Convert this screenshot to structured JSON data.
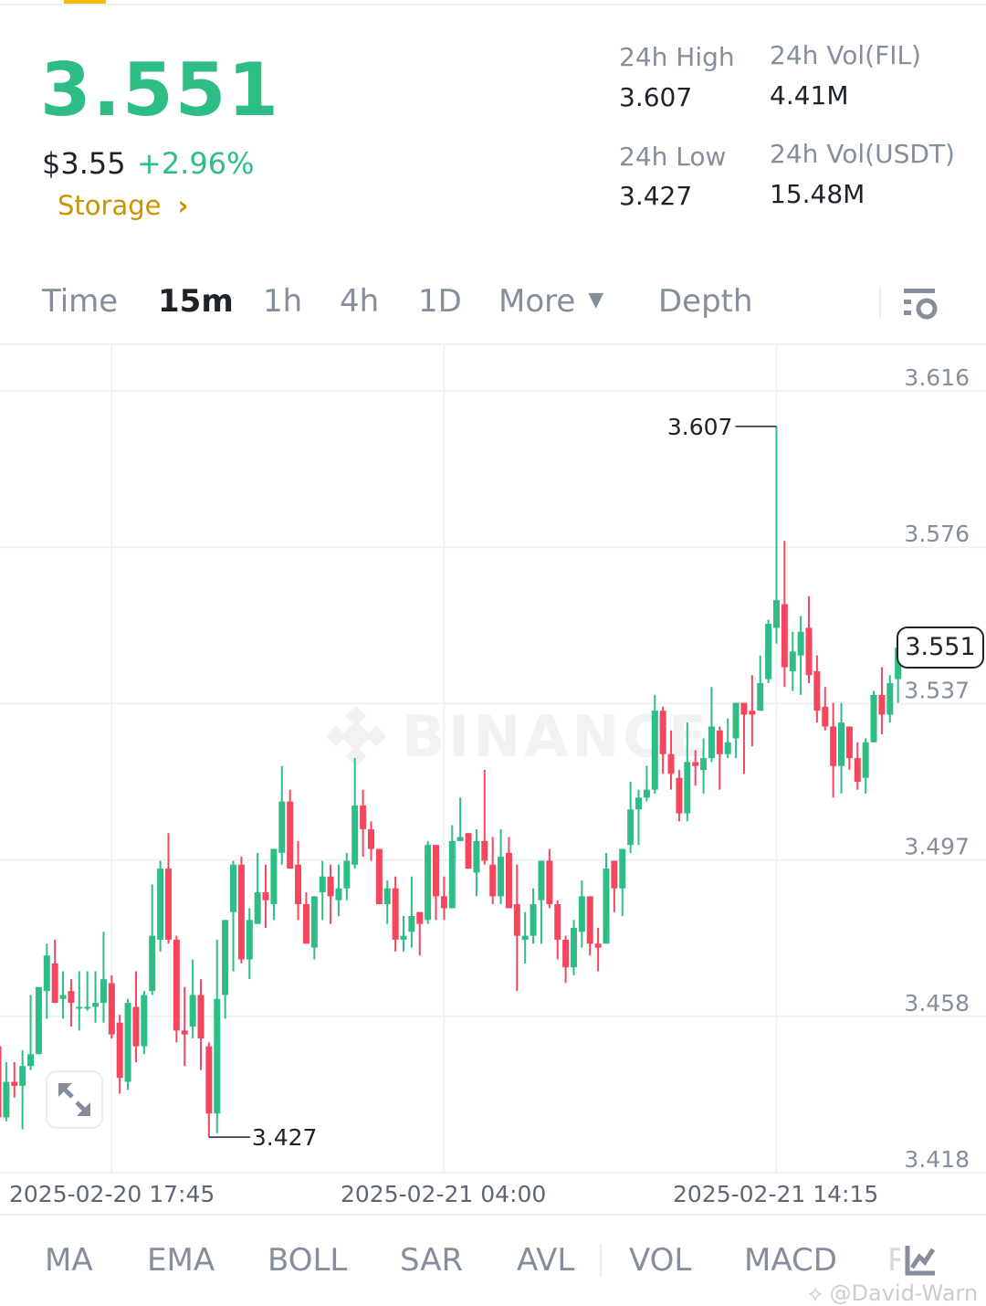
{
  "ticker": {
    "last_price": "3.551",
    "usd_price": "$3.55",
    "change_pct": "+2.96%",
    "category": "Storage",
    "stats": {
      "high_label": "24h High",
      "high_value": "3.607",
      "low_label": "24h Low",
      "low_value": "3.427",
      "vol_base_label": "24h Vol(FIL)",
      "vol_base_value": "4.41M",
      "vol_quote_label": "24h Vol(USDT)",
      "vol_quote_value": "15.48M"
    }
  },
  "tabs": [
    {
      "label": "Time",
      "active": false
    },
    {
      "label": "15m",
      "active": true
    },
    {
      "label": "1h",
      "active": false
    },
    {
      "label": "4h",
      "active": false
    },
    {
      "label": "1D",
      "active": false
    },
    {
      "label": "More",
      "active": false
    },
    {
      "label": "Depth",
      "active": false
    }
  ],
  "indicators": [
    "MA",
    "EMA",
    "BOLL",
    "SAR",
    "AVL",
    "VOL",
    "MACD",
    "R"
  ],
  "watermark": "@David-Warn",
  "logo_watermark": "BINANCE",
  "colors": {
    "up": "#2EBD85",
    "down": "#F6465D",
    "accent": "#F0B90B",
    "category": "#C99400"
  },
  "chart_data": {
    "type": "candlestick",
    "interval": "15m",
    "y_ticks": [
      "3.616",
      "3.576",
      "3.537",
      "3.497",
      "3.458",
      "3.418"
    ],
    "ylim": [
      3.418,
      3.616
    ],
    "x_ticks": [
      "2025-02-20 17:45",
      "2025-02-21 04:00",
      "2025-02-21 14:15"
    ],
    "grid": true,
    "high_marker": "3.607",
    "low_marker": "3.427",
    "last_price_label": "3.551",
    "ohlc": [
      [
        3.45,
        3.451,
        3.431,
        3.432
      ],
      [
        3.432,
        3.446,
        3.431,
        3.441
      ],
      [
        3.441,
        3.446,
        3.437,
        3.44
      ],
      [
        3.44,
        3.449,
        3.429,
        3.445
      ],
      [
        3.445,
        3.463,
        3.444,
        3.448
      ],
      [
        3.448,
        3.465,
        3.448,
        3.465
      ],
      [
        3.464,
        3.476,
        3.457,
        3.473
      ],
      [
        3.471,
        3.477,
        3.461,
        3.461
      ],
      [
        3.462,
        3.469,
        3.457,
        3.463
      ],
      [
        3.464,
        3.467,
        3.455,
        3.461
      ],
      [
        3.46,
        3.469,
        3.454,
        3.46
      ],
      [
        3.46,
        3.469,
        3.459,
        3.46
      ],
      [
        3.46,
        3.469,
        3.456,
        3.461
      ],
      [
        3.461,
        3.479,
        3.456,
        3.467
      ],
      [
        3.466,
        3.468,
        3.452,
        3.453
      ],
      [
        3.456,
        3.458,
        3.438,
        3.442
      ],
      [
        3.441,
        3.462,
        3.439,
        3.461
      ],
      [
        3.46,
        3.469,
        3.446,
        3.45
      ],
      [
        3.45,
        3.464,
        3.448,
        3.463
      ],
      [
        3.464,
        3.491,
        3.463,
        3.478
      ],
      [
        3.477,
        3.497,
        3.474,
        3.495
      ],
      [
        3.495,
        3.504,
        3.476,
        3.477
      ],
      [
        3.477,
        3.478,
        3.451,
        3.454
      ],
      [
        3.454,
        3.465,
        3.445,
        3.453
      ],
      [
        3.455,
        3.472,
        3.452,
        3.463
      ],
      [
        3.463,
        3.467,
        3.444,
        3.452
      ],
      [
        3.45,
        3.451,
        3.427,
        3.433
      ],
      [
        3.433,
        3.477,
        3.428,
        3.462
      ],
      [
        3.463,
        3.482,
        3.457,
        3.482
      ],
      [
        3.484,
        3.497,
        3.469,
        3.496
      ],
      [
        3.496,
        3.498,
        3.471,
        3.472
      ],
      [
        3.472,
        3.485,
        3.467,
        3.482
      ],
      [
        3.481,
        3.499,
        3.481,
        3.489
      ],
      [
        3.489,
        3.496,
        3.48,
        3.487
      ],
      [
        3.486,
        3.5,
        3.482,
        3.5
      ],
      [
        3.499,
        3.521,
        3.496,
        3.512
      ],
      [
        3.512,
        3.515,
        3.495,
        3.495
      ],
      [
        3.496,
        3.502,
        3.482,
        3.486
      ],
      [
        3.486,
        3.489,
        3.476,
        3.476
      ],
      [
        3.475,
        3.488,
        3.472,
        3.488
      ],
      [
        3.489,
        3.497,
        3.482,
        3.493
      ],
      [
        3.493,
        3.496,
        3.481,
        3.488
      ],
      [
        3.487,
        3.496,
        3.483,
        3.49
      ],
      [
        3.49,
        3.499,
        3.487,
        3.497
      ],
      [
        3.496,
        3.523,
        3.495,
        3.511
      ],
      [
        3.511,
        3.515,
        3.498,
        3.505
      ],
      [
        3.505,
        3.507,
        3.497,
        3.5
      ],
      [
        3.5,
        3.5,
        3.486,
        3.486
      ],
      [
        3.486,
        3.492,
        3.481,
        3.49
      ],
      [
        3.49,
        3.493,
        3.474,
        3.477
      ],
      [
        3.477,
        3.483,
        3.474,
        3.478
      ],
      [
        3.479,
        3.493,
        3.475,
        3.483
      ],
      [
        3.484,
        3.484,
        3.473,
        3.481
      ],
      [
        3.482,
        3.502,
        3.481,
        3.501
      ],
      [
        3.501,
        3.501,
        3.482,
        3.488
      ],
      [
        3.488,
        3.493,
        3.482,
        3.485
      ],
      [
        3.485,
        3.506,
        3.485,
        3.502
      ],
      [
        3.502,
        3.513,
        3.502,
        3.503
      ],
      [
        3.504,
        3.504,
        3.495,
        3.495
      ],
      [
        3.494,
        3.505,
        3.488,
        3.502
      ],
      [
        3.502,
        3.52,
        3.496,
        3.497
      ],
      [
        3.496,
        3.503,
        3.486,
        3.488
      ],
      [
        3.488,
        3.505,
        3.486,
        3.498
      ],
      [
        3.499,
        3.503,
        3.485,
        3.485
      ],
      [
        3.486,
        3.496,
        3.464,
        3.478
      ],
      [
        3.477,
        3.484,
        3.471,
        3.478
      ],
      [
        3.478,
        3.49,
        3.476,
        3.486
      ],
      [
        3.487,
        3.497,
        3.476,
        3.497
      ],
      [
        3.497,
        3.5,
        3.485,
        3.486
      ],
      [
        3.486,
        3.487,
        3.472,
        3.477
      ],
      [
        3.477,
        3.478,
        3.466,
        3.47
      ],
      [
        3.47,
        3.482,
        3.468,
        3.48
      ],
      [
        3.479,
        3.492,
        3.475,
        3.488
      ],
      [
        3.488,
        3.488,
        3.473,
        3.476
      ],
      [
        3.476,
        3.48,
        3.469,
        3.475
      ],
      [
        3.476,
        3.499,
        3.476,
        3.495
      ],
      [
        3.497,
        3.497,
        3.484,
        3.49
      ],
      [
        3.49,
        3.5,
        3.483,
        3.5
      ],
      [
        3.501,
        3.517,
        3.499,
        3.51
      ],
      [
        3.51,
        3.515,
        3.501,
        3.513
      ],
      [
        3.513,
        3.521,
        3.512,
        3.515
      ],
      [
        3.515,
        3.539,
        3.514,
        3.535
      ],
      [
        3.535,
        3.536,
        3.519,
        3.524
      ],
      [
        3.524,
        3.53,
        3.515,
        3.519
      ],
      [
        3.518,
        3.52,
        3.507,
        3.509
      ],
      [
        3.509,
        3.532,
        3.507,
        3.522
      ],
      [
        3.522,
        3.525,
        3.516,
        3.521
      ],
      [
        3.52,
        3.528,
        3.514,
        3.523
      ],
      [
        3.523,
        3.541,
        3.522,
        3.531
      ],
      [
        3.53,
        3.531,
        3.515,
        3.524
      ],
      [
        3.524,
        3.533,
        3.523,
        3.527
      ],
      [
        3.528,
        3.537,
        3.523,
        3.537
      ],
      [
        3.537,
        3.537,
        3.519,
        3.534
      ],
      [
        3.535,
        3.544,
        3.526,
        3.534
      ],
      [
        3.535,
        3.549,
        3.535,
        3.542
      ],
      [
        3.543,
        3.558,
        3.542,
        3.557
      ],
      [
        3.556,
        3.607,
        3.552,
        3.563
      ],
      [
        3.562,
        3.578,
        3.541,
        3.546
      ],
      [
        3.545,
        3.555,
        3.54,
        3.55
      ],
      [
        3.549,
        3.559,
        3.539,
        3.555
      ],
      [
        3.556,
        3.564,
        3.542,
        3.544
      ],
      [
        3.545,
        3.549,
        3.532,
        3.535
      ],
      [
        3.536,
        3.541,
        3.53,
        3.531
      ],
      [
        3.531,
        3.537,
        3.513,
        3.521
      ],
      [
        3.521,
        3.537,
        3.514,
        3.532
      ],
      [
        3.531,
        3.531,
        3.52,
        3.523
      ],
      [
        3.523,
        3.527,
        3.515,
        3.517
      ],
      [
        3.518,
        3.528,
        3.514,
        3.527
      ],
      [
        3.527,
        3.54,
        3.527,
        3.539
      ],
      [
        3.539,
        3.546,
        3.529,
        3.534
      ],
      [
        3.534,
        3.544,
        3.532,
        3.542
      ],
      [
        3.543,
        3.555,
        3.537,
        3.551
      ]
    ]
  }
}
